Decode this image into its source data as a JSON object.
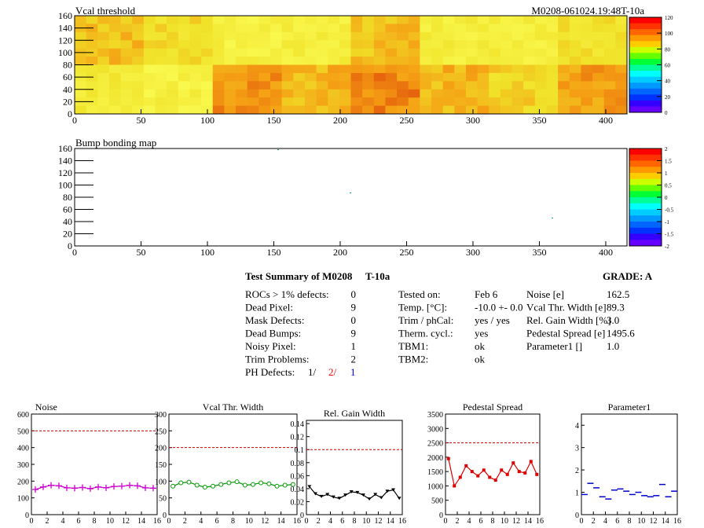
{
  "vcal_map": {
    "title": "Vcal threshold",
    "id": "M0208-061024.19:48T-10a",
    "x_ticks": [
      "0",
      "50",
      "100",
      "150",
      "200",
      "250",
      "300",
      "350",
      "400"
    ],
    "y_ticks": [
      "0",
      "20",
      "40",
      "60",
      "80",
      "100",
      "120",
      "140",
      "160"
    ],
    "scale": [
      "120",
      "100",
      "80",
      "60",
      "40",
      "20",
      "0"
    ]
  },
  "bump_map": {
    "title": "Bump bonding map",
    "x_ticks": [
      "0",
      "50",
      "100",
      "150",
      "200",
      "250",
      "300",
      "350",
      "400"
    ],
    "y_ticks": [
      "0",
      "20",
      "40",
      "60",
      "80",
      "100",
      "120",
      "140",
      "160"
    ],
    "scale": [
      "2",
      "1.5",
      "1",
      "0.5",
      "0",
      "-0.5",
      "-1",
      "-1.5",
      "-2"
    ]
  },
  "summary": {
    "title": "Test Summary of M0208",
    "tag": "T-10a",
    "grade": "GRADE:  A",
    "left": [
      {
        "label": "ROCs > 1% defects:",
        "value": "0"
      },
      {
        "label": "Dead Pixel:",
        "value": "9"
      },
      {
        "label": "Mask Defects:",
        "value": "0"
      },
      {
        "label": "Dead Bumps:",
        "value": "9"
      },
      {
        "label": "Noisy Pixel:",
        "value": "1"
      },
      {
        "label": "Trim Problems:",
        "value": "2"
      }
    ],
    "ph_label": "PH Defects:",
    "ph_values": [
      "1/",
      "2/",
      "1"
    ],
    "ph_colors": [
      "#000000",
      "#ee0000",
      "#0000ee"
    ],
    "mid": [
      {
        "label": "Tested on:",
        "value": "Feb 6"
      },
      {
        "label": "Temp. [°C]:",
        "value": "-10.0 +- 0.0"
      },
      {
        "label": "Trim / phCal:",
        "value": "yes / yes"
      },
      {
        "label": "Therm. cycl.:",
        "value": "yes"
      },
      {
        "label": "TBM1:",
        "value": "ok"
      },
      {
        "label": "TBM2:",
        "value": "ok"
      }
    ],
    "right": [
      {
        "label": "Noise [e]",
        "value": "162.5"
      },
      {
        "label": "Vcal Thr. Width [e]",
        "value": "89.3"
      },
      {
        "label": "Rel. Gain Width [%]",
        "value": "3.0"
      },
      {
        "label": "Pedestal Spread [e]",
        "value": "1495.6"
      },
      {
        "label": "Parameter1 []",
        "value": "1.0"
      }
    ]
  },
  "chart_data": [
    {
      "type": "line",
      "title": "Noise",
      "color": "#cc00cc",
      "style": "cross",
      "ylim": [
        0,
        600
      ],
      "limit": 500,
      "y_ticks": [
        "0",
        "100",
        "200",
        "300",
        "400",
        "500",
        "600"
      ],
      "x_ticks": [
        "0",
        "2",
        "4",
        "6",
        "8",
        "10",
        "12",
        "14",
        "16"
      ],
      "values": [
        150,
        165,
        175,
        172,
        160,
        158,
        162,
        155,
        165,
        160,
        168,
        170,
        175,
        172,
        160,
        158
      ]
    },
    {
      "type": "line",
      "title": "Vcal Thr. Width",
      "color": "#009900",
      "style": "circle",
      "ylim": [
        0,
        300
      ],
      "limit": 200,
      "y_ticks": [
        "0",
        "50",
        "100",
        "150",
        "200",
        "250",
        "300"
      ],
      "x_ticks": [
        "0",
        "2",
        "4",
        "6",
        "8",
        "10",
        "12",
        "14",
        "16"
      ],
      "values": [
        85,
        95,
        97,
        88,
        82,
        85,
        90,
        95,
        98,
        88,
        90,
        95,
        92,
        85,
        88,
        90
      ]
    },
    {
      "type": "line",
      "title": "Rel. Gain Width",
      "color": "#000000",
      "style": "triangle",
      "ylim": [
        0,
        0.145
      ],
      "limit": 0.1,
      "y_ticks": [
        "0",
        "0.02",
        "0.04",
        "0.06",
        "0.08",
        "0.1",
        "0.12",
        "0.14"
      ],
      "x_ticks": [
        "0",
        "2",
        "4",
        "6",
        "8",
        "10",
        "12",
        "14",
        "16"
      ],
      "values": [
        0.043,
        0.032,
        0.028,
        0.031,
        0.027,
        0.025,
        0.03,
        0.035,
        0.034,
        0.03,
        0.024,
        0.031,
        0.026,
        0.036,
        0.038,
        0.025
      ]
    },
    {
      "type": "line",
      "title": "Pedestal Spread",
      "color": "#dd0000",
      "style": "square",
      "ylim": [
        0,
        3500
      ],
      "limit": 2500,
      "y_ticks": [
        "0",
        "500",
        "1000",
        "1500",
        "2000",
        "2500",
        "3000",
        "3500"
      ],
      "x_ticks": [
        "0",
        "2",
        "4",
        "6",
        "8",
        "10",
        "12",
        "14",
        "16"
      ],
      "values": [
        1950,
        1000,
        1300,
        1700,
        1500,
        1350,
        1550,
        1300,
        1200,
        1550,
        1400,
        1800,
        1500,
        1450,
        1850,
        1400
      ]
    },
    {
      "type": "scatter",
      "title": "Parameter1",
      "color": "#0000cc",
      "style": "dash",
      "ylim": [
        0,
        4.5
      ],
      "limit": null,
      "y_ticks": [
        "0",
        "1",
        "2",
        "3",
        "4"
      ],
      "x_ticks": [
        "0",
        "2",
        "4",
        "6",
        "8",
        "10",
        "12",
        "14",
        "16"
      ],
      "values": [
        0.9,
        1.4,
        1.2,
        0.8,
        0.7,
        1.1,
        1.15,
        1.05,
        0.9,
        1.0,
        0.85,
        0.8,
        0.85,
        1.35,
        0.8,
        1.05
      ]
    }
  ]
}
